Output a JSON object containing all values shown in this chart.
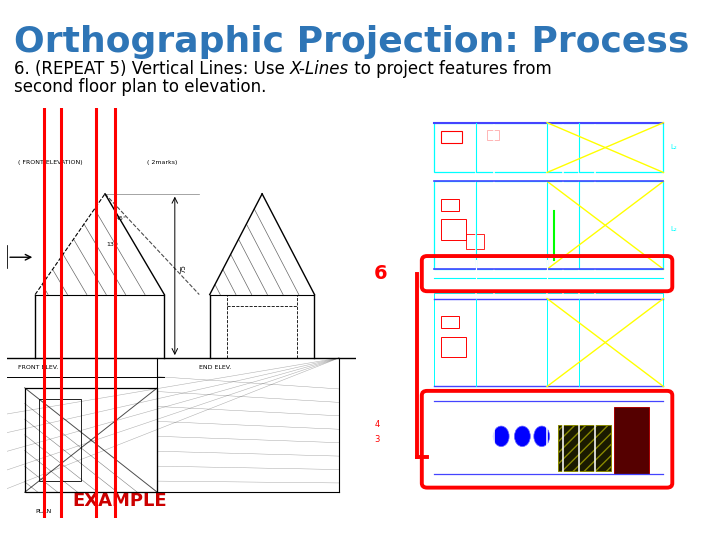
{
  "title": "Orthographic Projection: Process",
  "title_color": "#2E75B6",
  "title_fontsize": 26,
  "subtitle_line1": "6. (REPEAT 5) Vertical Lines: Use ",
  "subtitle_italic": "X-Lines",
  "subtitle_line1b": " to project features from",
  "subtitle_line2": "second floor plan to elevation.",
  "subtitle_fontsize": 12,
  "bg_color": "#ffffff",
  "example_text": "EXAMPLE",
  "example_color": "#cc0000",
  "example_fontsize": 13,
  "number6_color": "#cc0000",
  "number6_fontsize": 16
}
